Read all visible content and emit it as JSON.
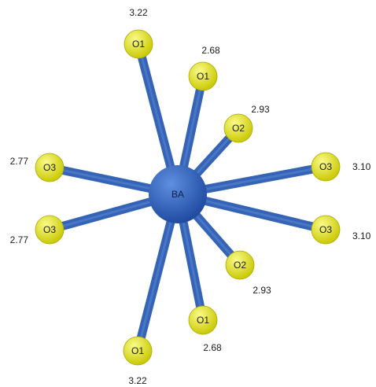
{
  "colors": {
    "bond": "#3563b5",
    "bond_highlight": "#5a86d4",
    "center_light": "#5f8fe0",
    "center_dark": "#1e4aa0",
    "ligand_light": "#fbfb8a",
    "ligand_dark": "#c8c800",
    "ligand_stroke": "#a8a800"
  },
  "center": {
    "label": "BA"
  },
  "ligands": [
    {
      "label": "O1",
      "distance": "3.22"
    },
    {
      "label": "O1",
      "distance": "2.68"
    },
    {
      "label": "O2",
      "distance": "2.93"
    },
    {
      "label": "O3",
      "distance": "3.10"
    },
    {
      "label": "O3",
      "distance": "3.10"
    },
    {
      "label": "O2",
      "distance": "2.93"
    },
    {
      "label": "O1",
      "distance": "2.68"
    },
    {
      "label": "O1",
      "distance": "3.22"
    },
    {
      "label": "O3",
      "distance": "2.77"
    },
    {
      "label": "O3",
      "distance": "2.77"
    }
  ]
}
